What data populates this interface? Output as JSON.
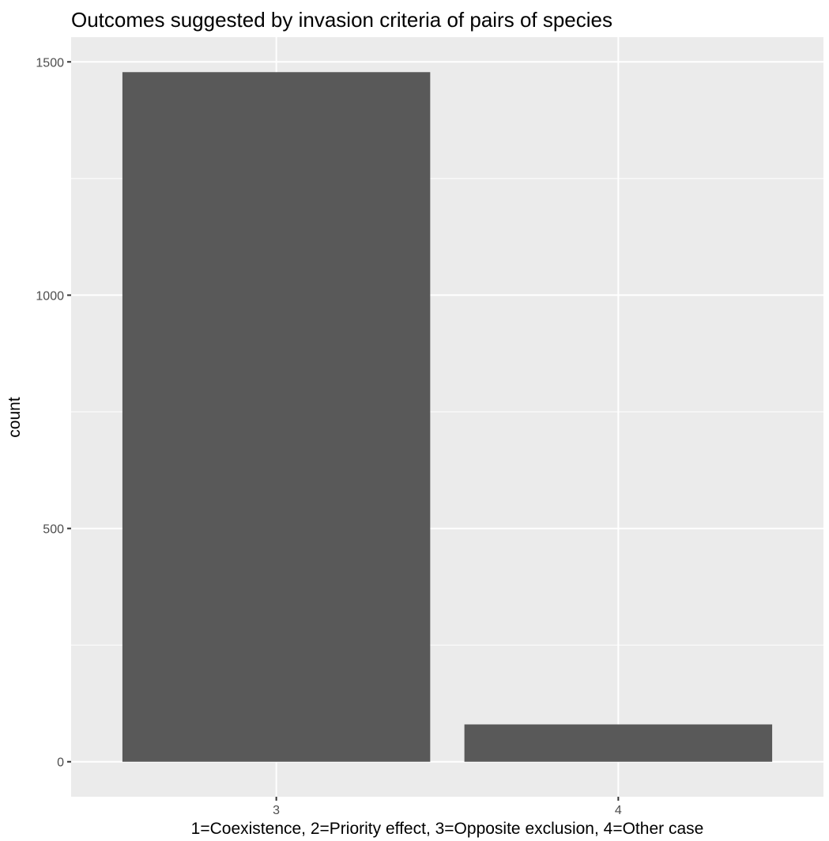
{
  "chart_data": {
    "type": "bar",
    "title": "Outcomes suggested by invasion criteria of pairs of species",
    "xlabel": "1=Coexistence, 2=Priority effect, 3=Opposite exclusion, 4=Other case",
    "ylabel": "count",
    "categories": [
      "3",
      "4"
    ],
    "values": [
      1478,
      80
    ],
    "ylim": [
      -75,
      1553
    ],
    "yticks": [
      0,
      500,
      1000,
      1500
    ],
    "yticks_minor": [
      250,
      750,
      1250
    ],
    "grid": true,
    "legend": "none",
    "colors": {
      "panel_background": "#ebebeb",
      "grid_line": "#ffffff",
      "bar_fill": "#595959",
      "tick_mark": "#333333",
      "tick_label": "#4d4d4d",
      "text": "#000000"
    }
  }
}
